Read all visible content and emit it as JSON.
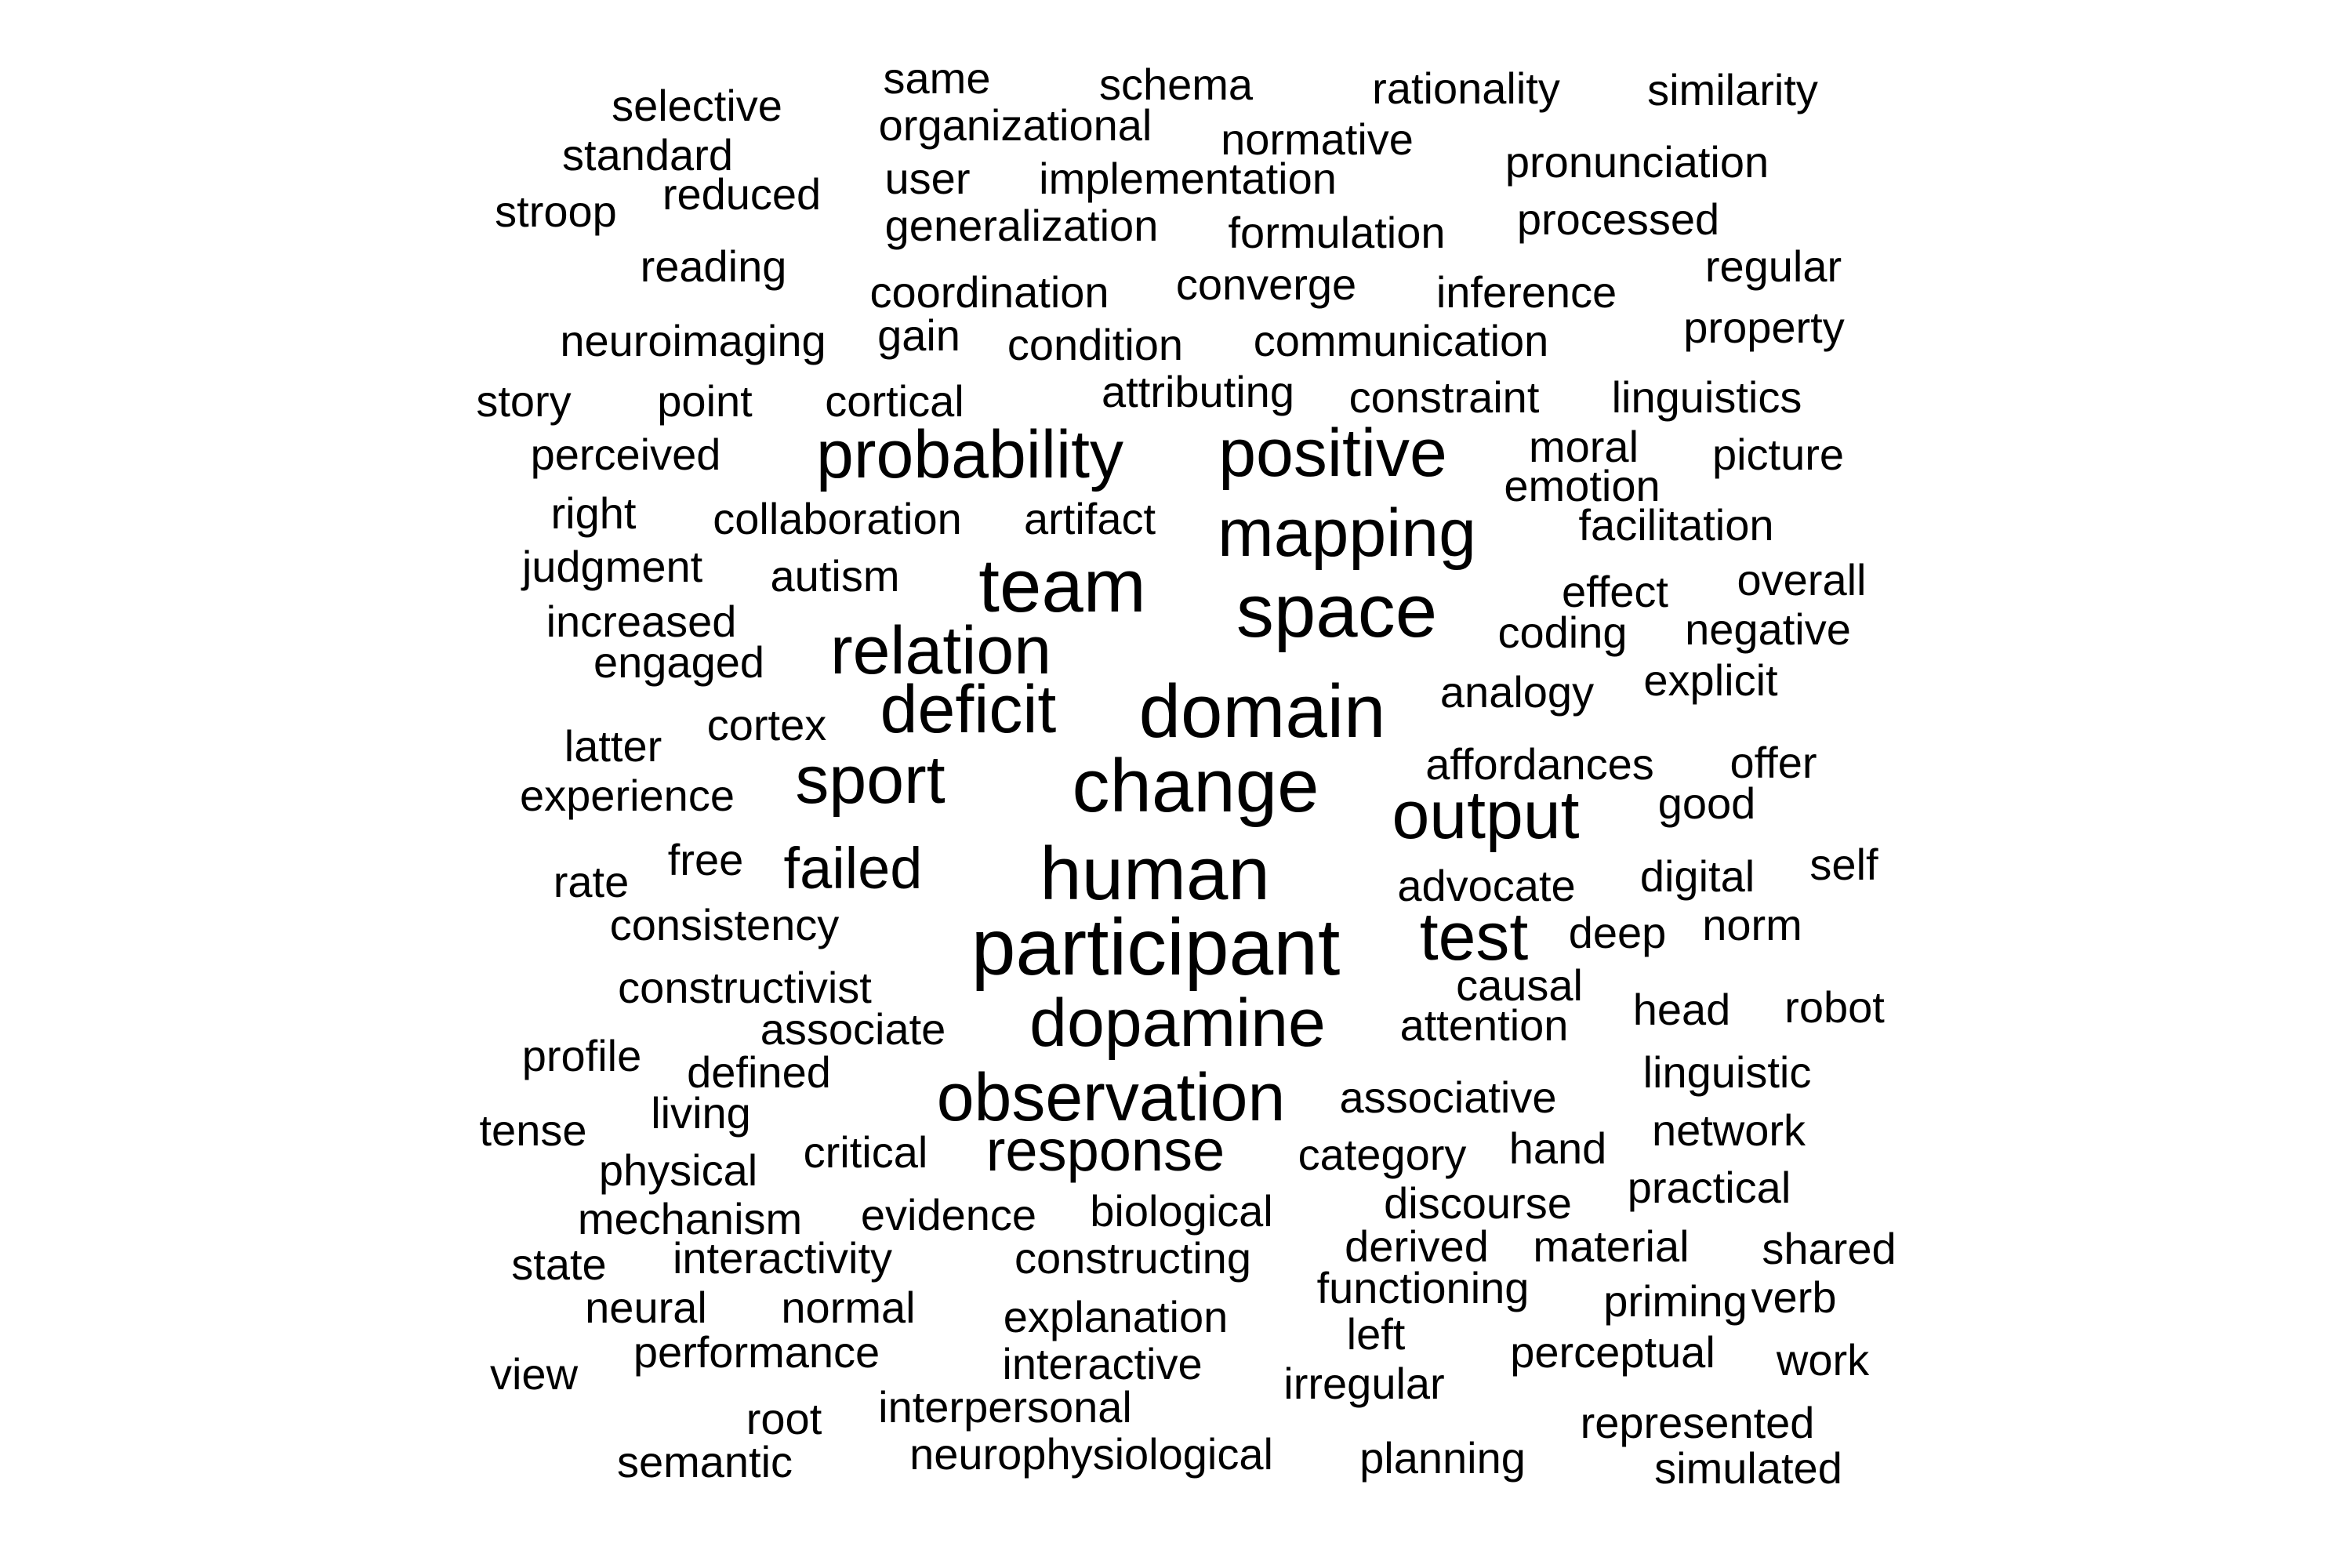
{
  "word_cloud": {
    "text_color": "#000000",
    "background": "#ffffff",
    "words": [
      {
        "text": "participant",
        "weight": 10
      },
      {
        "text": "human",
        "weight": 9
      },
      {
        "text": "change",
        "weight": 9
      },
      {
        "text": "domain",
        "weight": 9
      },
      {
        "text": "team",
        "weight": 9
      },
      {
        "text": "space",
        "weight": 9
      },
      {
        "text": "test",
        "weight": 8
      },
      {
        "text": "dopamine",
        "weight": 8
      },
      {
        "text": "observation",
        "weight": 8
      },
      {
        "text": "output",
        "weight": 8
      },
      {
        "text": "deficit",
        "weight": 8
      },
      {
        "text": "relation",
        "weight": 8
      },
      {
        "text": "sport",
        "weight": 8
      },
      {
        "text": "probability",
        "weight": 8
      },
      {
        "text": "positive",
        "weight": 8
      },
      {
        "text": "mapping",
        "weight": 8
      },
      {
        "text": "response",
        "weight": 7
      },
      {
        "text": "failed",
        "weight": 7
      },
      {
        "text": "selective",
        "weight": 5
      },
      {
        "text": "same",
        "weight": 5
      },
      {
        "text": "schema",
        "weight": 5
      },
      {
        "text": "rationality",
        "weight": 5
      },
      {
        "text": "similarity",
        "weight": 5
      },
      {
        "text": "organizational",
        "weight": 5
      },
      {
        "text": "standard",
        "weight": 5
      },
      {
        "text": "normative",
        "weight": 5
      },
      {
        "text": "pronunciation",
        "weight": 5
      },
      {
        "text": "user",
        "weight": 5
      },
      {
        "text": "implementation",
        "weight": 5
      },
      {
        "text": "reduced",
        "weight": 5
      },
      {
        "text": "stroop",
        "weight": 5
      },
      {
        "text": "processed",
        "weight": 5
      },
      {
        "text": "generalization",
        "weight": 5
      },
      {
        "text": "formulation",
        "weight": 5
      },
      {
        "text": "reading",
        "weight": 5
      },
      {
        "text": "regular",
        "weight": 5
      },
      {
        "text": "coordination",
        "weight": 5
      },
      {
        "text": "converge",
        "weight": 5
      },
      {
        "text": "inference",
        "weight": 5
      },
      {
        "text": "property",
        "weight": 5
      },
      {
        "text": "neuroimaging",
        "weight": 5
      },
      {
        "text": "gain",
        "weight": 5
      },
      {
        "text": "condition",
        "weight": 5
      },
      {
        "text": "communication",
        "weight": 5
      },
      {
        "text": "attributing",
        "weight": 5
      },
      {
        "text": "story",
        "weight": 5
      },
      {
        "text": "point",
        "weight": 5
      },
      {
        "text": "cortical",
        "weight": 5
      },
      {
        "text": "constraint",
        "weight": 5
      },
      {
        "text": "linguistics",
        "weight": 5
      },
      {
        "text": "moral",
        "weight": 5
      },
      {
        "text": "perceived",
        "weight": 5
      },
      {
        "text": "picture",
        "weight": 5
      },
      {
        "text": "emotion",
        "weight": 5
      },
      {
        "text": "right",
        "weight": 5
      },
      {
        "text": "collaboration",
        "weight": 5
      },
      {
        "text": "artifact",
        "weight": 5
      },
      {
        "text": "facilitation",
        "weight": 5
      },
      {
        "text": "judgment",
        "weight": 5
      },
      {
        "text": "autism",
        "weight": 5
      },
      {
        "text": "overall",
        "weight": 5
      },
      {
        "text": "effect",
        "weight": 5
      },
      {
        "text": "increased",
        "weight": 5
      },
      {
        "text": "coding",
        "weight": 5
      },
      {
        "text": "negative",
        "weight": 5
      },
      {
        "text": "engaged",
        "weight": 5
      },
      {
        "text": "explicit",
        "weight": 5
      },
      {
        "text": "analogy",
        "weight": 5
      },
      {
        "text": "cortex",
        "weight": 5
      },
      {
        "text": "latter",
        "weight": 5
      },
      {
        "text": "affordances",
        "weight": 5
      },
      {
        "text": "offer",
        "weight": 5
      },
      {
        "text": "experience",
        "weight": 5
      },
      {
        "text": "good",
        "weight": 5
      },
      {
        "text": "free",
        "weight": 5
      },
      {
        "text": "rate",
        "weight": 5
      },
      {
        "text": "advocate",
        "weight": 5
      },
      {
        "text": "digital",
        "weight": 5
      },
      {
        "text": "self",
        "weight": 5
      },
      {
        "text": "consistency",
        "weight": 5
      },
      {
        "text": "deep",
        "weight": 5
      },
      {
        "text": "norm",
        "weight": 5
      },
      {
        "text": "constructivist",
        "weight": 5
      },
      {
        "text": "causal",
        "weight": 5
      },
      {
        "text": "head",
        "weight": 5
      },
      {
        "text": "robot",
        "weight": 5
      },
      {
        "text": "associate",
        "weight": 5
      },
      {
        "text": "attention",
        "weight": 5
      },
      {
        "text": "profile",
        "weight": 5
      },
      {
        "text": "defined",
        "weight": 5
      },
      {
        "text": "linguistic",
        "weight": 5
      },
      {
        "text": "associative",
        "weight": 5
      },
      {
        "text": "tense",
        "weight": 5
      },
      {
        "text": "living",
        "weight": 5
      },
      {
        "text": "network",
        "weight": 5
      },
      {
        "text": "critical",
        "weight": 5
      },
      {
        "text": "hand",
        "weight": 5
      },
      {
        "text": "category",
        "weight": 5
      },
      {
        "text": "physical",
        "weight": 5
      },
      {
        "text": "practical",
        "weight": 5
      },
      {
        "text": "discourse",
        "weight": 5
      },
      {
        "text": "mechanism",
        "weight": 5
      },
      {
        "text": "evidence",
        "weight": 5
      },
      {
        "text": "biological",
        "weight": 5
      },
      {
        "text": "derived",
        "weight": 5
      },
      {
        "text": "material",
        "weight": 5
      },
      {
        "text": "shared",
        "weight": 5
      },
      {
        "text": "state",
        "weight": 5
      },
      {
        "text": "interactivity",
        "weight": 5
      },
      {
        "text": "constructing",
        "weight": 5
      },
      {
        "text": "functioning",
        "weight": 5
      },
      {
        "text": "verb",
        "weight": 5
      },
      {
        "text": "neural",
        "weight": 5
      },
      {
        "text": "normal",
        "weight": 5
      },
      {
        "text": "priming",
        "weight": 5
      },
      {
        "text": "explanation",
        "weight": 5
      },
      {
        "text": "left",
        "weight": 5
      },
      {
        "text": "performance",
        "weight": 5
      },
      {
        "text": "perceptual",
        "weight": 5
      },
      {
        "text": "view",
        "weight": 5
      },
      {
        "text": "work",
        "weight": 5
      },
      {
        "text": "interactive",
        "weight": 5
      },
      {
        "text": "irregular",
        "weight": 5
      },
      {
        "text": "interpersonal",
        "weight": 5
      },
      {
        "text": "root",
        "weight": 5
      },
      {
        "text": "represented",
        "weight": 5
      },
      {
        "text": "semantic",
        "weight": 5
      },
      {
        "text": "neurophysiological",
        "weight": 5
      },
      {
        "text": "planning",
        "weight": 5
      },
      {
        "text": "simulated",
        "weight": 5
      }
    ]
  }
}
